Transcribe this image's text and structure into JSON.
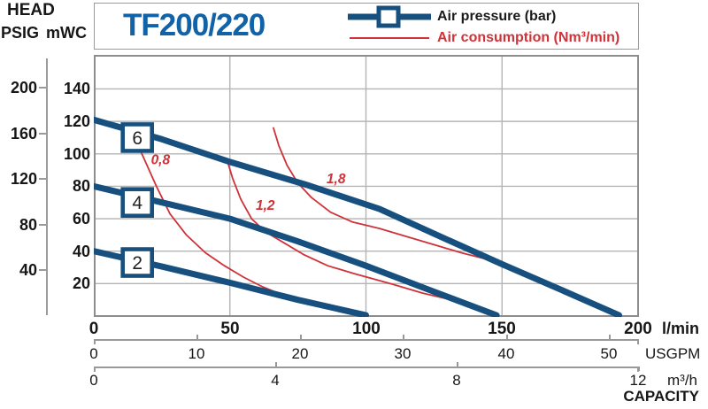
{
  "colors": {
    "navy": "#17507e",
    "title_blue": "#1262a7",
    "red": "#cf3238",
    "grid": "#b4b4b4",
    "plot_border": "#8d8d8d",
    "text": "#171717"
  },
  "header": {
    "head_label": "HEAD",
    "psig_label": "PSIG",
    "mwc_label": "mWC",
    "title": "TF200/220"
  },
  "legend": {
    "air_pressure": "Air pressure (bar)",
    "air_consumption": "Air consumption (Nm³/min)"
  },
  "axes": {
    "psig": {
      "ticks": [
        200,
        160,
        120,
        80,
        40
      ],
      "mwc_per_psig": 0.7031
    },
    "mwc": {
      "ticks": [
        140,
        120,
        100,
        80,
        60,
        40,
        20
      ]
    },
    "capacity_label": "CAPACITY"
  },
  "scales": {
    "lmin": {
      "ticks": [
        0,
        50,
        100,
        150,
        200
      ],
      "unit": "l/min",
      "lmin_per_unit": 1
    },
    "usgpm": {
      "ticks": [
        0,
        10,
        20,
        30,
        40,
        50
      ],
      "unit": "USGPM",
      "lmin_per_unit": 3.7854
    },
    "m3h": {
      "ticks": [
        0,
        4,
        8,
        12
      ],
      "unit": "m³/h",
      "lmin_per_unit": 16.667
    }
  },
  "chart_data": {
    "type": "line",
    "xlabel": "CAPACITY (l/min / USGPM / m³/h)",
    "ylabel": "HEAD (mWC / PSIG)",
    "xlim": [
      0,
      200
    ],
    "ylim": [
      0,
      161
    ],
    "grid": "on",
    "legend_position": "top-right",
    "series": [
      {
        "name": "Air pressure 6 bar",
        "role": "pressure",
        "color": "#17507e",
        "points": [
          [
            0,
            121
          ],
          [
            25,
            109
          ],
          [
            50,
            95
          ],
          [
            78,
            81
          ],
          [
            105,
            66
          ],
          [
            130,
            47
          ],
          [
            150,
            32
          ],
          [
            172,
            16
          ],
          [
            193,
            0.5
          ]
        ],
        "box_label": {
          "text": "6",
          "l": 16,
          "m": 110
        }
      },
      {
        "name": "Air pressure 4 bar",
        "role": "pressure",
        "color": "#17507e",
        "points": [
          [
            0,
            80
          ],
          [
            25,
            70
          ],
          [
            50,
            60
          ],
          [
            75,
            46
          ],
          [
            100,
            31
          ],
          [
            125,
            15
          ],
          [
            148,
            0.5
          ]
        ],
        "box_label": {
          "text": "4",
          "l": 16,
          "m": 70
        }
      },
      {
        "name": "Air pressure 2 bar",
        "role": "pressure",
        "color": "#17507e",
        "points": [
          [
            0,
            40
          ],
          [
            25,
            30.5
          ],
          [
            50,
            20.5
          ],
          [
            75,
            10
          ],
          [
            100,
            0.5
          ]
        ],
        "box_label": {
          "text": "2",
          "l": 16,
          "m": 33
        }
      },
      {
        "name": "Air consumption 0,8 Nm³/min",
        "role": "consumption",
        "color": "#cf3238",
        "points": [
          [
            15,
            110
          ],
          [
            19,
            95
          ],
          [
            23,
            80
          ],
          [
            28,
            63
          ],
          [
            34,
            50
          ],
          [
            41,
            39
          ],
          [
            48,
            31
          ],
          [
            55,
            24
          ],
          [
            62,
            18
          ],
          [
            70,
            12.5
          ],
          [
            80,
            7.5
          ],
          [
            90,
            3.5
          ],
          [
            99,
            1
          ]
        ],
        "text_label": {
          "text": "0,8",
          "l": 21,
          "m": 93.5
        }
      },
      {
        "name": "Air consumption 1,2 Nm³/min",
        "role": "consumption",
        "color": "#cf3238",
        "points": [
          [
            49,
            96
          ],
          [
            51,
            85
          ],
          [
            54,
            72
          ],
          [
            58,
            60
          ],
          [
            63,
            52
          ],
          [
            69,
            46
          ],
          [
            77,
            38
          ],
          [
            86,
            31
          ],
          [
            96,
            26
          ],
          [
            109,
            20
          ],
          [
            121,
            14
          ],
          [
            134,
            9
          ]
        ],
        "text_label": {
          "text": "1,2",
          "l": 59.5,
          "m": 65.5
        }
      },
      {
        "name": "Air consumption 1,8 Nm³/min",
        "role": "consumption",
        "color": "#cf3238",
        "points": [
          [
            66,
            116
          ],
          [
            68,
            105
          ],
          [
            71,
            93
          ],
          [
            75,
            82
          ],
          [
            80,
            73
          ],
          [
            87,
            64
          ],
          [
            95,
            58
          ],
          [
            105,
            54
          ],
          [
            115,
            49
          ],
          [
            125,
            44
          ],
          [
            135,
            39
          ],
          [
            148,
            33.5
          ]
        ],
        "text_label": {
          "text": "1,8",
          "l": 85.5,
          "m": 82
        }
      }
    ]
  }
}
